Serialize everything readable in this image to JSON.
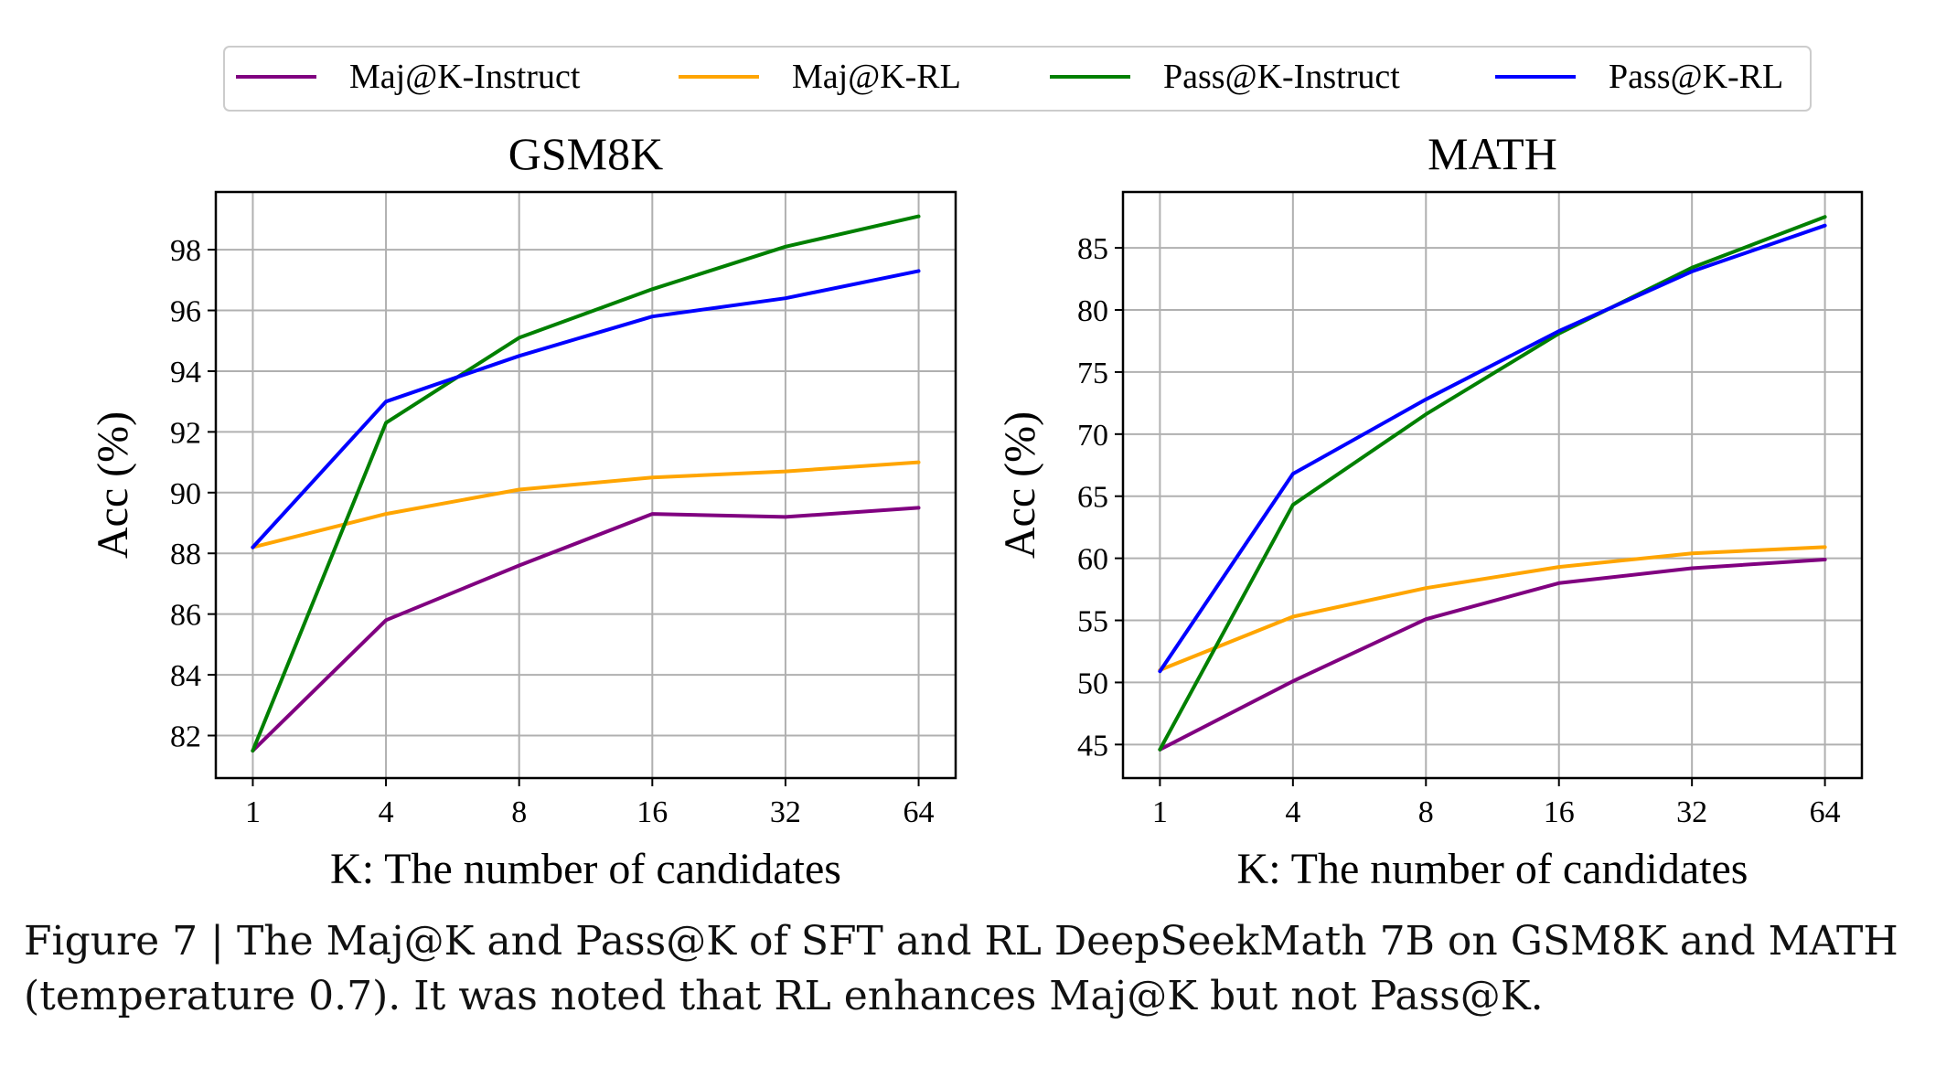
{
  "legend": {
    "items": [
      {
        "label": "Maj@K-Instruct",
        "color": "#800080"
      },
      {
        "label": "Maj@K-RL",
        "color": "#FFA500"
      },
      {
        "label": "Pass@K-Instruct",
        "color": "#008000"
      },
      {
        "label": "Pass@K-RL",
        "color": "#0000FF"
      }
    ],
    "placement": "top-center, above both plots"
  },
  "chart_data": [
    {
      "type": "line",
      "title": "GSM8K",
      "xlabel": "K: The number of candidates",
      "ylabel": "Acc (%)",
      "categories": [
        "1",
        "4",
        "8",
        "16",
        "32",
        "64"
      ],
      "ylim": [
        80.6,
        99.9
      ],
      "yticks": [
        82,
        84,
        86,
        88,
        90,
        92,
        94,
        96,
        98
      ],
      "grid": true,
      "series": [
        {
          "name": "Maj@K-Instruct",
          "color": "#800080",
          "values": [
            81.5,
            85.8,
            87.6,
            89.3,
            89.2,
            89.5
          ]
        },
        {
          "name": "Maj@K-RL",
          "color": "#FFA500",
          "values": [
            88.2,
            89.3,
            90.1,
            90.5,
            90.7,
            91.0
          ]
        },
        {
          "name": "Pass@K-Instruct",
          "color": "#008000",
          "values": [
            81.5,
            92.3,
            95.1,
            96.7,
            98.1,
            99.1
          ]
        },
        {
          "name": "Pass@K-RL",
          "color": "#0000FF",
          "values": [
            88.2,
            93.0,
            94.5,
            95.8,
            96.4,
            97.3
          ]
        }
      ]
    },
    {
      "type": "line",
      "title": "MATH",
      "xlabel": "K: The number of candidates",
      "ylabel": "Acc (%)",
      "categories": [
        "1",
        "4",
        "8",
        "16",
        "32",
        "64"
      ],
      "ylim": [
        42.3,
        89.5
      ],
      "yticks": [
        45,
        50,
        55,
        60,
        65,
        70,
        75,
        80,
        85
      ],
      "grid": true,
      "series": [
        {
          "name": "Maj@K-Instruct",
          "color": "#800080",
          "values": [
            44.6,
            50.1,
            55.1,
            58.0,
            59.2,
            59.9
          ]
        },
        {
          "name": "Maj@K-RL",
          "color": "#FFA500",
          "values": [
            51.0,
            55.3,
            57.6,
            59.3,
            60.4,
            60.9
          ]
        },
        {
          "name": "Pass@K-Instruct",
          "color": "#008000",
          "values": [
            44.6,
            64.3,
            71.6,
            78.1,
            83.4,
            87.5
          ]
        },
        {
          "name": "Pass@K-RL",
          "color": "#0000FF",
          "values": [
            50.9,
            66.8,
            72.8,
            78.3,
            83.1,
            86.8
          ]
        }
      ]
    }
  ],
  "caption": {
    "line1": "Figure 7 | The Maj@K and Pass@K of SFT and RL DeepSeekMath 7B on GSM8K and MATH",
    "line2": "(temperature 0.7). It was noted that RL enhances Maj@K but not Pass@K."
  }
}
